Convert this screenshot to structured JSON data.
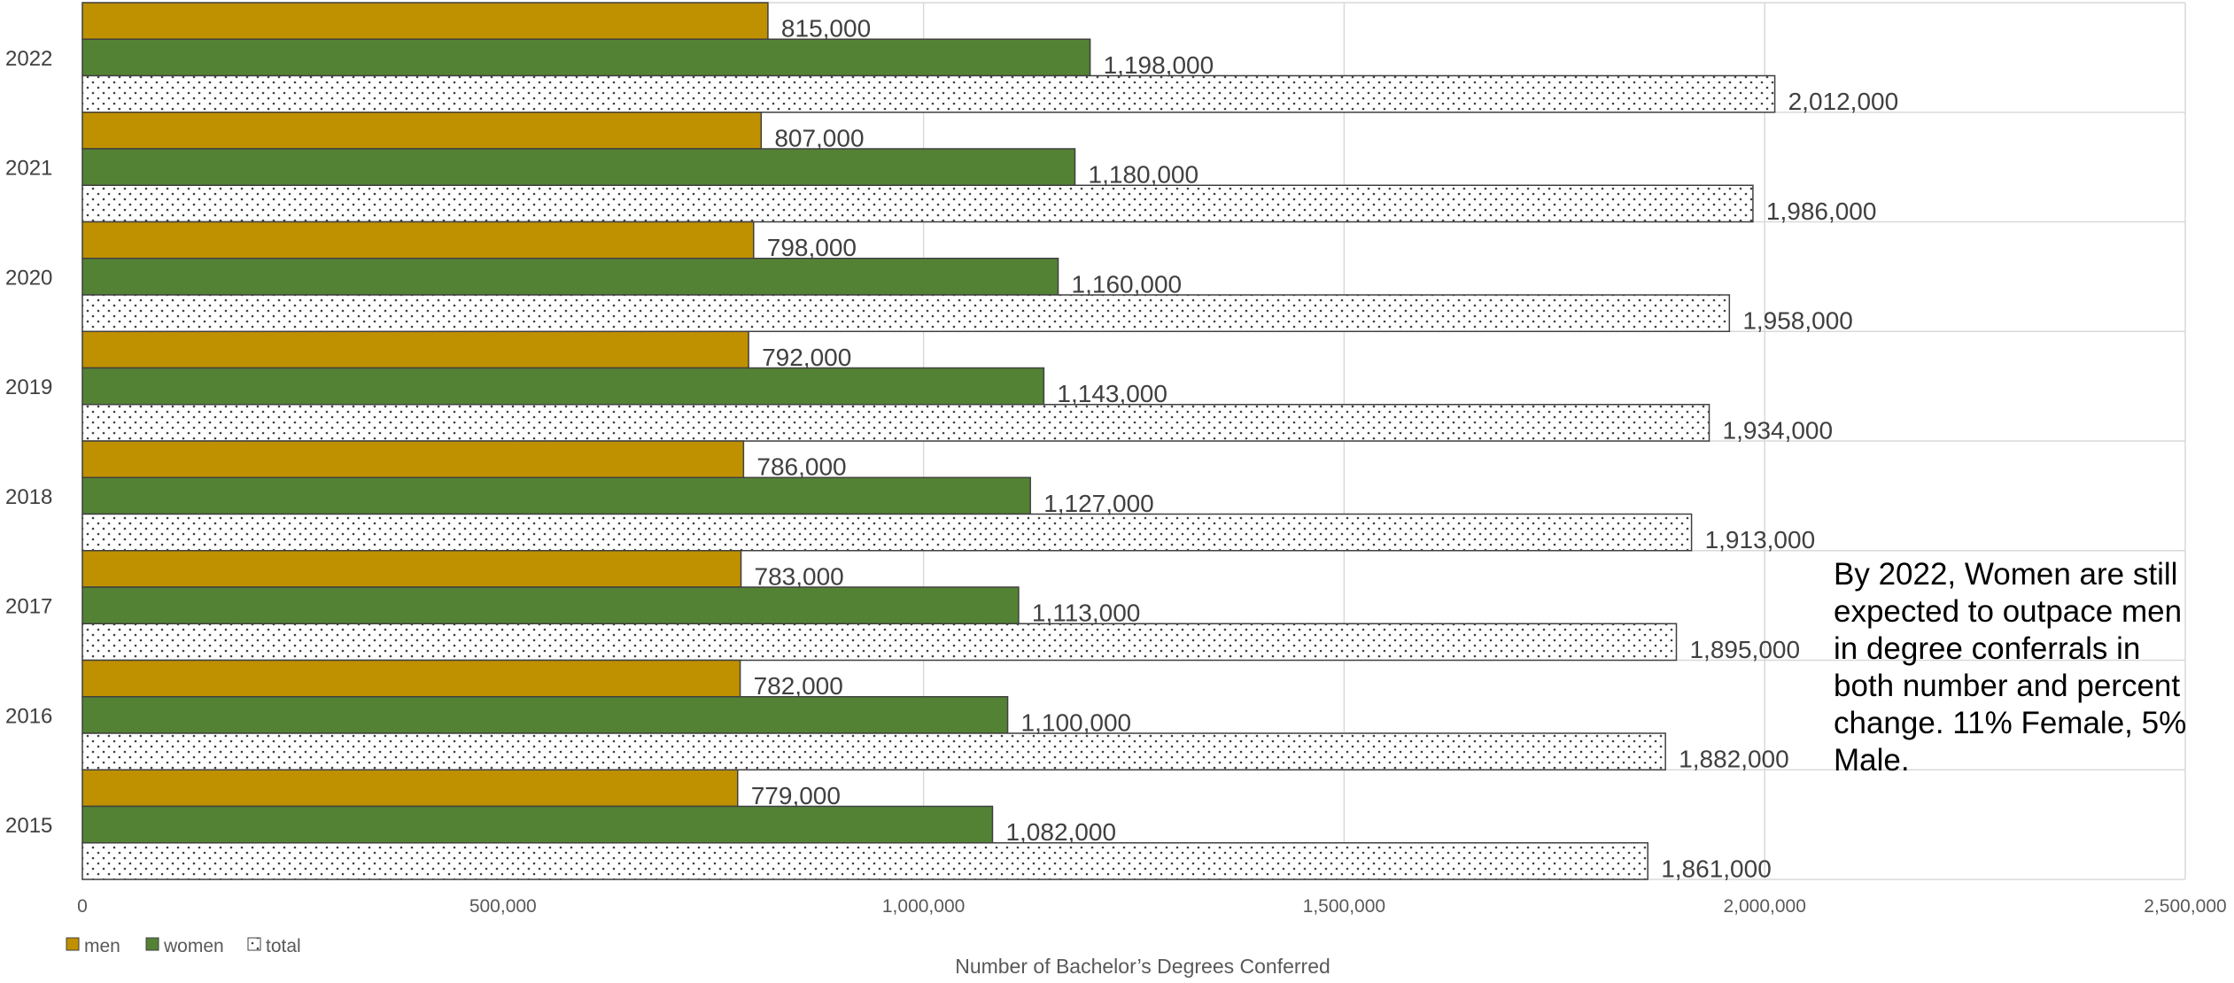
{
  "chart_data": {
    "type": "bar",
    "orientation": "horizontal",
    "categories": [
      "2022",
      "2021",
      "2020",
      "2019",
      "2018",
      "2017",
      "2016",
      "2015"
    ],
    "series": [
      {
        "name": "men",
        "color": "#BF9000",
        "pattern": "solid",
        "values": [
          815000,
          807000,
          798000,
          792000,
          786000,
          783000,
          782000,
          779000
        ],
        "labels": [
          "815,000",
          "807,000",
          "798,000",
          "792,000",
          "786,000",
          "783,000",
          "782,000",
          "779,000"
        ]
      },
      {
        "name": "women",
        "color": "#548235",
        "pattern": "solid",
        "values": [
          1198000,
          1180000,
          1160000,
          1143000,
          1127000,
          1113000,
          1100000,
          1082000
        ],
        "labels": [
          "1,198,000",
          "1,180,000",
          "1,160,000",
          "1,143,000",
          "1,127,000",
          "1,113,000",
          "1,100,000",
          "1,082,000"
        ]
      },
      {
        "name": "total",
        "color": "#FFFFFF",
        "pattern": "dotted",
        "values": [
          2012000,
          1986000,
          1958000,
          1934000,
          1913000,
          1895000,
          1882000,
          1861000
        ],
        "labels": [
          "2,012,000",
          "1,986,000",
          "1,958,000",
          "1,934,000",
          "1,913,000",
          "1,895,000",
          "1,882,000",
          "1,861,000"
        ]
      }
    ],
    "xlim": [
      0,
      2500000
    ],
    "xticks": [
      0,
      500000,
      1000000,
      1500000,
      2000000,
      2500000
    ],
    "xtick_labels": [
      "0",
      "500,000",
      "1,000,000",
      "1,500,000",
      "2,000,000",
      "2,500,000"
    ],
    "xlabel": "Number of Bachelor’s Degrees Conferred",
    "ylabel": "",
    "title": "",
    "grid": true,
    "legend_position": "bottom-left",
    "annotation": "By 2022, Women are still expected to outpace men in degree conferrals in both number and percent change. 11% Female, 5% Male."
  }
}
